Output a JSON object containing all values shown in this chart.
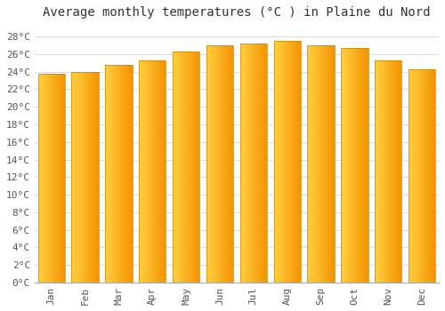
{
  "title": "Average monthly temperatures (°C ) in Plaine du Nord",
  "months": [
    "Jan",
    "Feb",
    "Mar",
    "Apr",
    "May",
    "Jun",
    "Jul",
    "Aug",
    "Sep",
    "Oct",
    "Nov",
    "Dec"
  ],
  "temperatures": [
    23.8,
    24.0,
    24.8,
    25.3,
    26.3,
    27.0,
    27.2,
    27.5,
    27.0,
    26.7,
    25.3,
    24.3
  ],
  "bar_color_left": "#FFD040",
  "bar_color_right": "#F59200",
  "background_color": "#ffffff",
  "grid_color": "#dddddd",
  "yticks": [
    0,
    2,
    4,
    6,
    8,
    10,
    12,
    14,
    16,
    18,
    20,
    22,
    24,
    26,
    28
  ],
  "ylim": [
    0,
    29.5
  ],
  "title_fontsize": 10,
  "tick_fontsize": 8
}
